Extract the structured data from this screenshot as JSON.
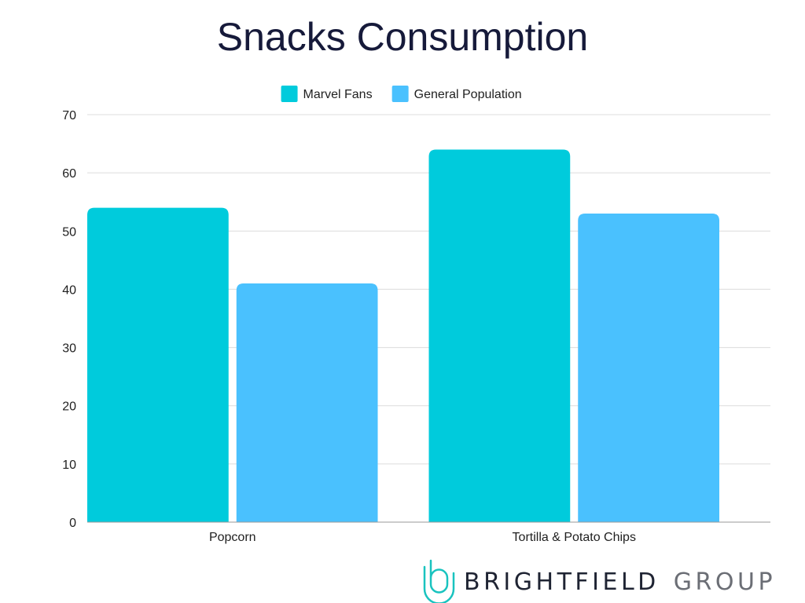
{
  "chart_data": {
    "type": "bar",
    "title": "Snacks Consumption",
    "categories": [
      "Popcorn",
      "Tortilla & Potato Chips"
    ],
    "series": [
      {
        "name": "Marvel Fans",
        "color": "#00cbdc",
        "values": [
          54,
          64
        ]
      },
      {
        "name": "General Population",
        "color": "#4ac1fe",
        "values": [
          41,
          53
        ]
      }
    ],
    "xlabel": "",
    "ylabel": "",
    "ylim": [
      0,
      70
    ],
    "yticks": [
      0,
      10,
      20,
      30,
      40,
      50,
      60,
      70
    ],
    "grid": true,
    "legend_position": "top-center"
  },
  "branding": {
    "logo_word_1": "BRIGHTFIELD",
    "logo_word_2": "GROUP",
    "logo_icon": "brightfield-mark-icon",
    "word_1_color": "#1f2433",
    "word_2_color": "#6b6e75",
    "icon_color": "#19c3bf"
  }
}
